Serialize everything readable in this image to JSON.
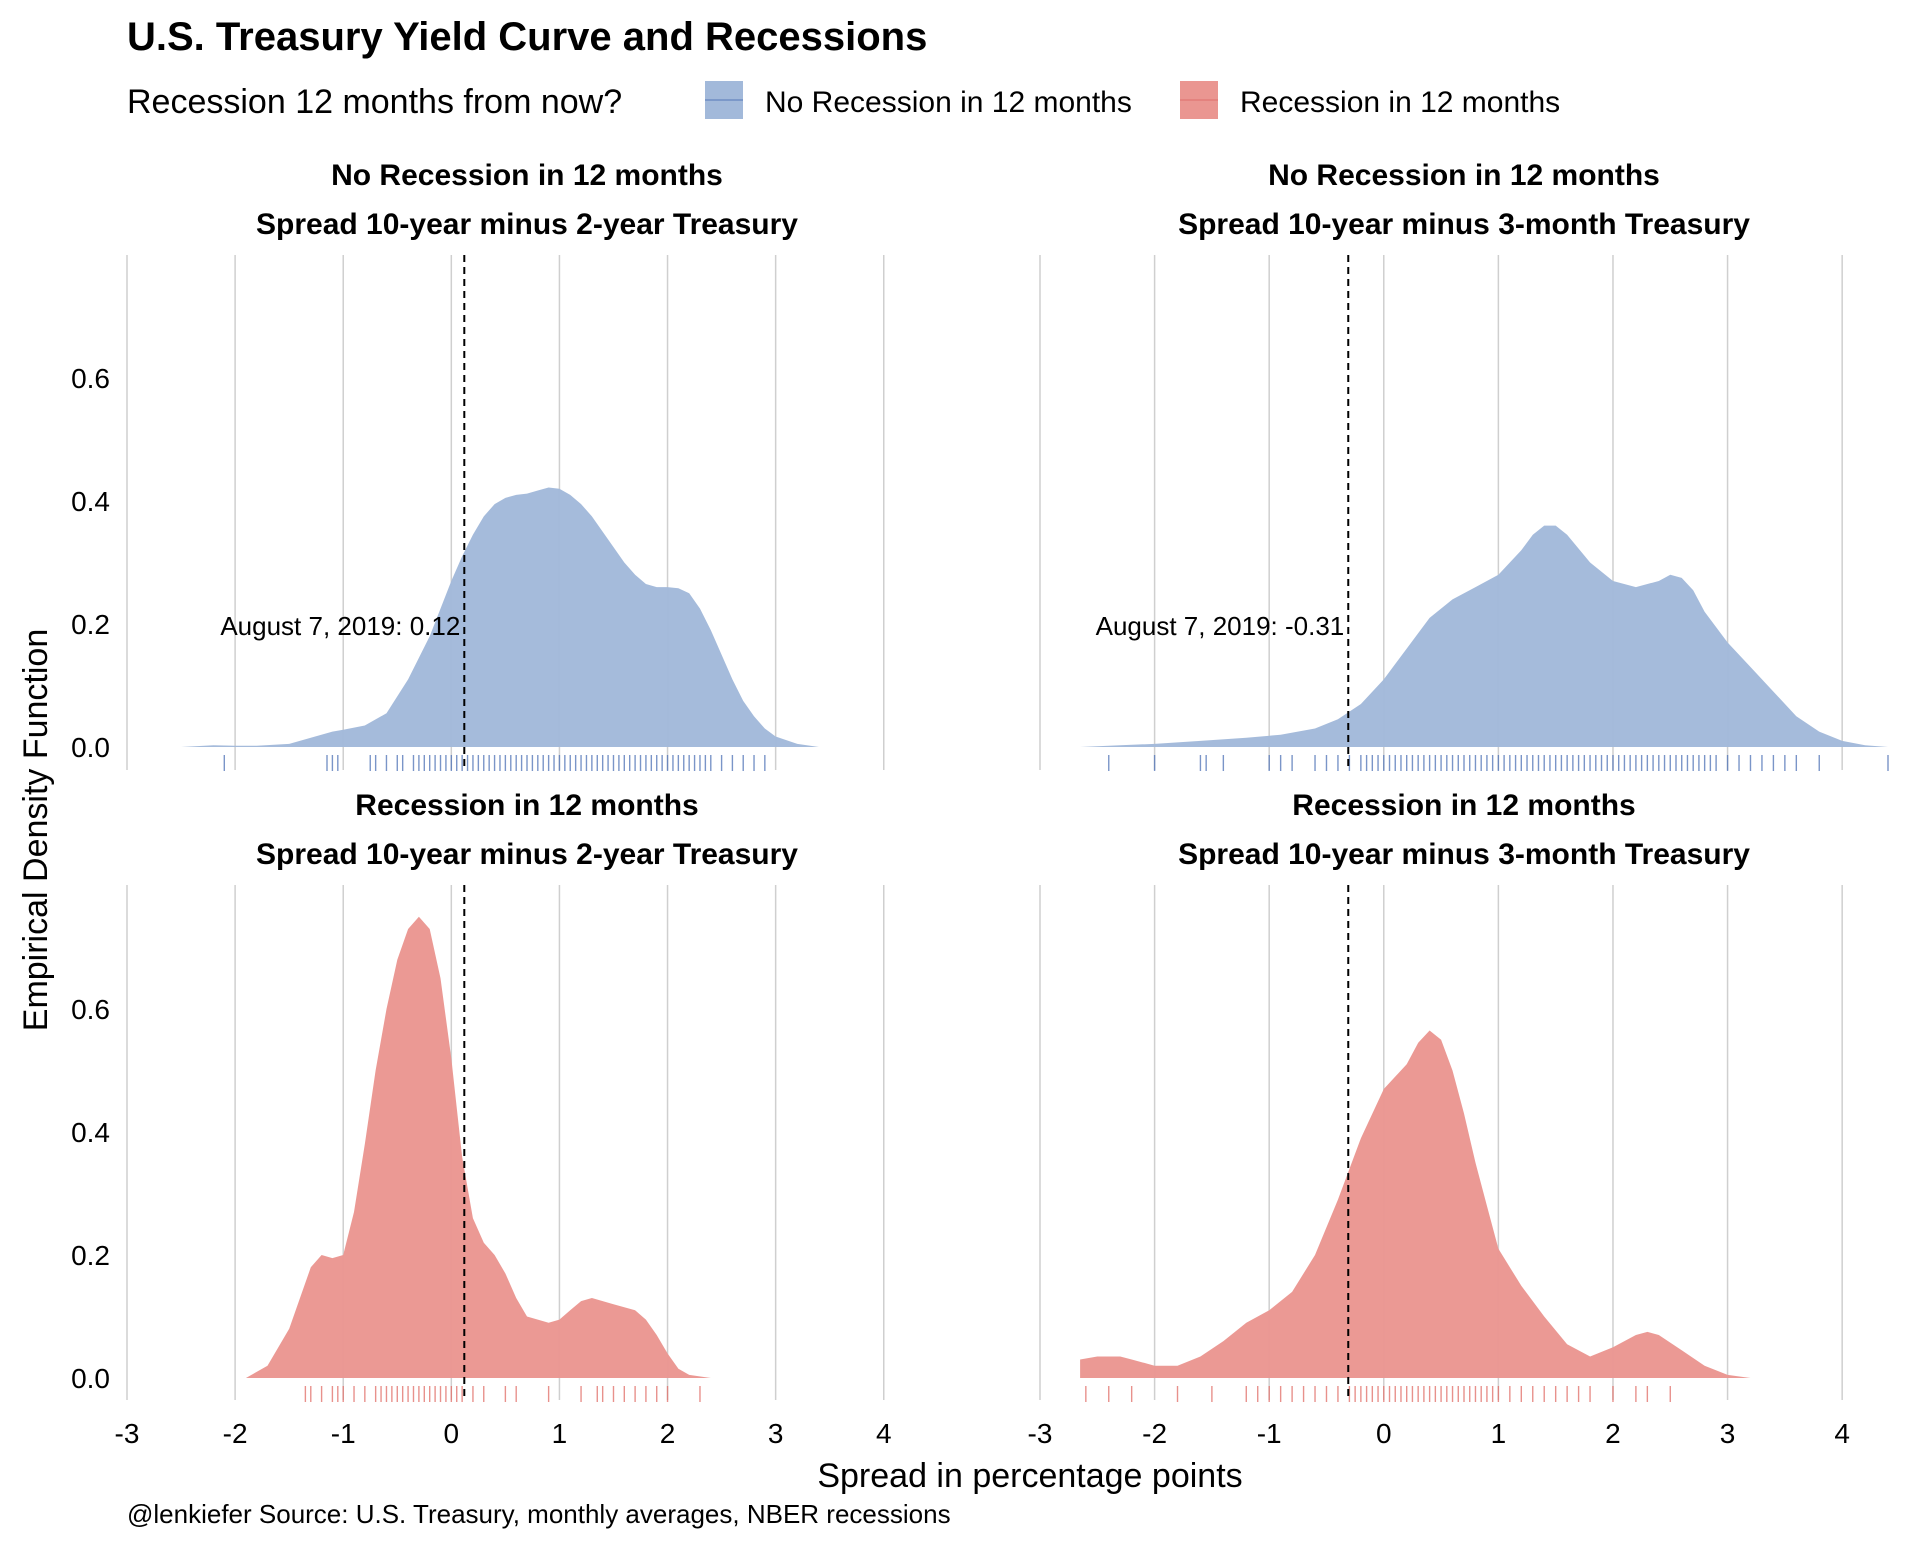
{
  "title": "U.S. Treasury Yield Curve and Recessions",
  "legend": {
    "title": "Recession 12 months from now?",
    "position": "top",
    "items": [
      {
        "label": "No Recession in 12 months",
        "color": "#a2b9da"
      },
      {
        "label": "Recession in 12 months",
        "color": "#ea9691"
      }
    ]
  },
  "ylabel": "Empirical Density Function",
  "xlabel": "Spread in percentage points",
  "caption": "@lenkiefer Source: U.S. Treasury, monthly averages, NBER recessions",
  "colors": {
    "no_recession_fill": "#a2b9da",
    "no_recession_rug": "#4d72b5",
    "recession_fill": "#ea9691",
    "recession_rug": "#e06c66",
    "grid": "#cfcfcf"
  },
  "chart_data": {
    "type": "area",
    "grid": true,
    "xlim": [
      -3,
      4.4
    ],
    "ylim": [
      0,
      0.78
    ],
    "x_ticks": [
      "-3",
      "-2",
      "-1",
      "0",
      "1",
      "2",
      "3",
      "4"
    ],
    "y_ticks": [
      "0.0",
      "0.2",
      "0.4",
      "0.6"
    ],
    "panels": [
      {
        "strip": [
          "No Recession in 12 months",
          "Spread 10-year minus 2-year Treasury"
        ],
        "group": "no_recession",
        "vline": 0.12,
        "annotation": "August 7, 2019: 0.12",
        "density": {
          "x": [
            -2.5,
            -2.2,
            -2.0,
            -1.8,
            -1.5,
            -1.3,
            -1.1,
            -1.0,
            -0.8,
            -0.6,
            -0.4,
            -0.2,
            0.0,
            0.1,
            0.2,
            0.3,
            0.4,
            0.5,
            0.6,
            0.7,
            0.8,
            0.9,
            1.0,
            1.1,
            1.2,
            1.3,
            1.4,
            1.5,
            1.6,
            1.7,
            1.8,
            1.9,
            2.0,
            2.1,
            2.2,
            2.3,
            2.4,
            2.5,
            2.6,
            2.7,
            2.8,
            2.9,
            3.0,
            3.2,
            3.4
          ],
          "y": [
            0.0,
            0.003,
            0.002,
            0.002,
            0.005,
            0.015,
            0.025,
            0.028,
            0.035,
            0.055,
            0.11,
            0.18,
            0.27,
            0.31,
            0.345,
            0.375,
            0.395,
            0.405,
            0.41,
            0.412,
            0.417,
            0.422,
            0.42,
            0.41,
            0.395,
            0.375,
            0.35,
            0.325,
            0.3,
            0.28,
            0.265,
            0.26,
            0.26,
            0.258,
            0.25,
            0.225,
            0.19,
            0.15,
            0.11,
            0.075,
            0.05,
            0.03,
            0.017,
            0.005,
            0.0
          ]
        },
        "rug": [
          -2.1,
          -1.15,
          -1.1,
          -1.05,
          -0.75,
          -0.7,
          -0.6,
          -0.5,
          -0.45,
          -0.35,
          -0.3,
          -0.25,
          -0.2,
          -0.15,
          -0.1,
          -0.05,
          0.0,
          0.05,
          0.1,
          0.15,
          0.2,
          0.25,
          0.3,
          0.35,
          0.4,
          0.45,
          0.5,
          0.55,
          0.6,
          0.65,
          0.7,
          0.75,
          0.8,
          0.85,
          0.9,
          0.95,
          1.0,
          1.05,
          1.1,
          1.15,
          1.2,
          1.25,
          1.3,
          1.35,
          1.4,
          1.45,
          1.5,
          1.55,
          1.6,
          1.65,
          1.7,
          1.75,
          1.8,
          1.85,
          1.9,
          1.95,
          2.0,
          2.05,
          2.1,
          2.15,
          2.2,
          2.25,
          2.3,
          2.35,
          2.4,
          2.5,
          2.6,
          2.7,
          2.8,
          2.9
        ]
      },
      {
        "strip": [
          "No Recession in 12 months",
          "Spread 10-year minus 3-month Treasury"
        ],
        "group": "no_recession",
        "vline": -0.31,
        "annotation": "August 7, 2019: -0.31",
        "density": {
          "x": [
            -2.65,
            -2.3,
            -2.0,
            -1.6,
            -1.2,
            -0.9,
            -0.6,
            -0.4,
            -0.2,
            0.0,
            0.2,
            0.4,
            0.6,
            0.8,
            1.0,
            1.2,
            1.3,
            1.4,
            1.5,
            1.6,
            1.8,
            2.0,
            2.2,
            2.4,
            2.5,
            2.6,
            2.7,
            2.8,
            3.0,
            3.2,
            3.4,
            3.6,
            3.8,
            4.0,
            4.2,
            4.4
          ],
          "y": [
            0.0,
            0.003,
            0.005,
            0.01,
            0.015,
            0.02,
            0.03,
            0.045,
            0.07,
            0.11,
            0.16,
            0.21,
            0.24,
            0.26,
            0.28,
            0.32,
            0.345,
            0.36,
            0.36,
            0.345,
            0.3,
            0.27,
            0.26,
            0.27,
            0.28,
            0.275,
            0.255,
            0.22,
            0.17,
            0.13,
            0.09,
            0.05,
            0.025,
            0.01,
            0.003,
            0.0
          ]
        },
        "rug": [
          -2.4,
          -2.0,
          -1.6,
          -1.55,
          -1.4,
          -1.0,
          -0.9,
          -0.8,
          -0.6,
          -0.5,
          -0.4,
          -0.3,
          -0.2,
          -0.15,
          -0.1,
          -0.05,
          0.0,
          0.05,
          0.1,
          0.15,
          0.2,
          0.25,
          0.3,
          0.35,
          0.4,
          0.45,
          0.5,
          0.55,
          0.6,
          0.65,
          0.7,
          0.75,
          0.8,
          0.85,
          0.9,
          0.95,
          1.0,
          1.05,
          1.1,
          1.15,
          1.2,
          1.25,
          1.3,
          1.35,
          1.4,
          1.45,
          1.5,
          1.55,
          1.6,
          1.65,
          1.7,
          1.75,
          1.8,
          1.85,
          1.9,
          1.95,
          2.0,
          2.05,
          2.1,
          2.15,
          2.2,
          2.25,
          2.3,
          2.35,
          2.4,
          2.45,
          2.5,
          2.55,
          2.6,
          2.65,
          2.7,
          2.75,
          2.8,
          2.85,
          2.9,
          3.0,
          3.1,
          3.2,
          3.3,
          3.4,
          3.5,
          3.6,
          3.8,
          4.4
        ]
      },
      {
        "strip": [
          "Recession in 12 months",
          "Spread 10-year minus 2-year Treasury"
        ],
        "group": "recession",
        "vline": 0.12,
        "annotation": "",
        "density": {
          "x": [
            -1.9,
            -1.7,
            -1.5,
            -1.4,
            -1.3,
            -1.2,
            -1.1,
            -1.0,
            -0.9,
            -0.8,
            -0.7,
            -0.6,
            -0.5,
            -0.4,
            -0.3,
            -0.2,
            -0.1,
            0.0,
            0.1,
            0.2,
            0.3,
            0.4,
            0.5,
            0.6,
            0.7,
            0.8,
            0.9,
            1.0,
            1.1,
            1.2,
            1.3,
            1.4,
            1.5,
            1.6,
            1.7,
            1.8,
            1.9,
            2.0,
            2.1,
            2.2,
            2.4
          ],
          "y": [
            0.0,
            0.02,
            0.08,
            0.13,
            0.18,
            0.2,
            0.195,
            0.2,
            0.27,
            0.38,
            0.5,
            0.6,
            0.68,
            0.73,
            0.75,
            0.73,
            0.65,
            0.52,
            0.36,
            0.26,
            0.22,
            0.2,
            0.17,
            0.13,
            0.1,
            0.095,
            0.09,
            0.095,
            0.11,
            0.125,
            0.13,
            0.125,
            0.12,
            0.115,
            0.11,
            0.095,
            0.07,
            0.04,
            0.015,
            0.005,
            0.0
          ]
        },
        "rug": [
          -1.35,
          -1.3,
          -1.2,
          -1.1,
          -1.05,
          -1.0,
          -0.9,
          -0.8,
          -0.7,
          -0.65,
          -0.6,
          -0.55,
          -0.5,
          -0.45,
          -0.4,
          -0.35,
          -0.3,
          -0.25,
          -0.2,
          -0.15,
          -0.1,
          -0.05,
          0.0,
          0.05,
          0.1,
          0.2,
          0.3,
          0.5,
          0.6,
          0.9,
          1.2,
          1.35,
          1.4,
          1.5,
          1.6,
          1.7,
          1.8,
          1.9,
          2.0,
          2.3
        ]
      },
      {
        "strip": [
          "Recession in 12 months",
          "Spread 10-year minus 3-month Treasury"
        ],
        "group": "recession",
        "vline": -0.31,
        "annotation": "",
        "density": {
          "x": [
            -2.65,
            -2.5,
            -2.3,
            -2.2,
            -2.0,
            -1.8,
            -1.6,
            -1.4,
            -1.2,
            -1.0,
            -0.8,
            -0.6,
            -0.4,
            -0.2,
            0.0,
            0.2,
            0.3,
            0.4,
            0.5,
            0.6,
            0.7,
            0.8,
            0.9,
            1.0,
            1.2,
            1.4,
            1.6,
            1.8,
            2.0,
            2.2,
            2.3,
            2.4,
            2.6,
            2.8,
            3.0,
            3.2
          ],
          "y": [
            0.03,
            0.035,
            0.035,
            0.03,
            0.02,
            0.02,
            0.035,
            0.06,
            0.09,
            0.11,
            0.14,
            0.2,
            0.29,
            0.39,
            0.47,
            0.51,
            0.545,
            0.565,
            0.55,
            0.5,
            0.43,
            0.35,
            0.28,
            0.21,
            0.15,
            0.1,
            0.055,
            0.035,
            0.05,
            0.07,
            0.075,
            0.07,
            0.045,
            0.02,
            0.005,
            0.0
          ]
        },
        "rug": [
          -2.6,
          -2.4,
          -2.2,
          -1.8,
          -1.5,
          -1.2,
          -1.1,
          -1.0,
          -0.9,
          -0.8,
          -0.7,
          -0.6,
          -0.5,
          -0.4,
          -0.3,
          -0.25,
          -0.2,
          -0.15,
          -0.1,
          -0.05,
          0.0,
          0.05,
          0.1,
          0.15,
          0.2,
          0.25,
          0.3,
          0.35,
          0.4,
          0.45,
          0.5,
          0.55,
          0.6,
          0.65,
          0.7,
          0.75,
          0.8,
          0.85,
          0.9,
          0.95,
          1.0,
          1.1,
          1.2,
          1.3,
          1.4,
          1.5,
          1.6,
          1.7,
          1.8,
          2.0,
          2.2,
          2.3,
          2.5
        ]
      }
    ]
  }
}
